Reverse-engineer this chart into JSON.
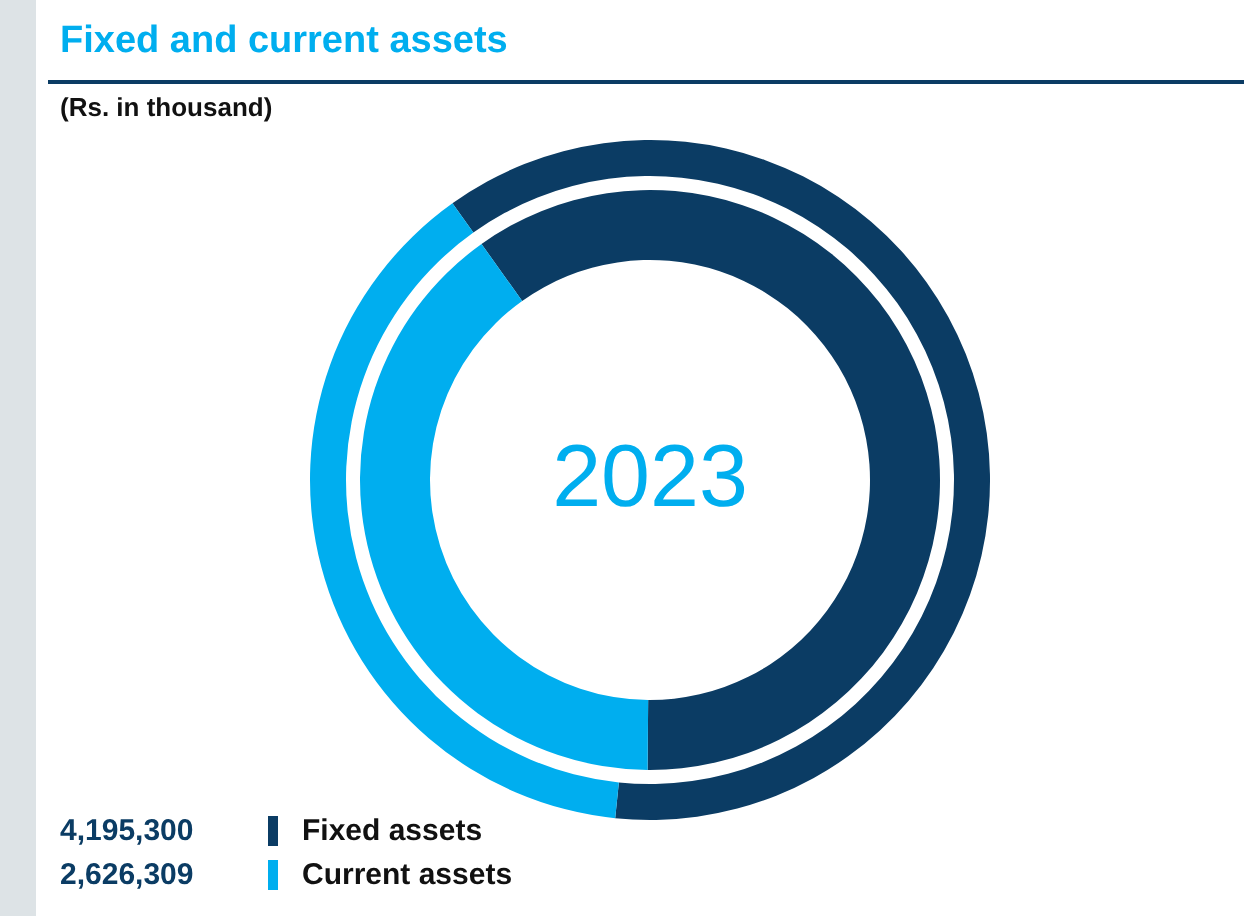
{
  "chart_data": {
    "type": "donut",
    "title": "Fixed and current assets",
    "subtitle": "(Rs. in thousand)",
    "categories": [
      "Fixed assets",
      "Current assets"
    ],
    "series": [
      {
        "values": [
          4195300,
          2626309
        ],
        "value_labels": [
          "4,195,300",
          "2,626,309"
        ]
      },
      {
        "values": [
          60,
          40
        ]
      }
    ],
    "colors": [
      "#0b3c64",
      "#00aeef"
    ],
    "annotations": [
      "2023"
    ],
    "legend": "bottom left"
  }
}
